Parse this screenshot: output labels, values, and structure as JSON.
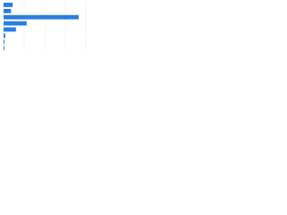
{
  "chart_data": {
    "type": "bar",
    "orientation": "horizontal",
    "categories": [
      null,
      null,
      null,
      null,
      null,
      null,
      null,
      null
    ],
    "values": [
      11,
      9,
      91,
      28,
      15,
      2,
      1,
      1
    ],
    "color": "#2a7de1",
    "xlim": [
      0,
      100
    ],
    "xticks": [
      0,
      25,
      50,
      75,
      100
    ],
    "grid": true
  }
}
